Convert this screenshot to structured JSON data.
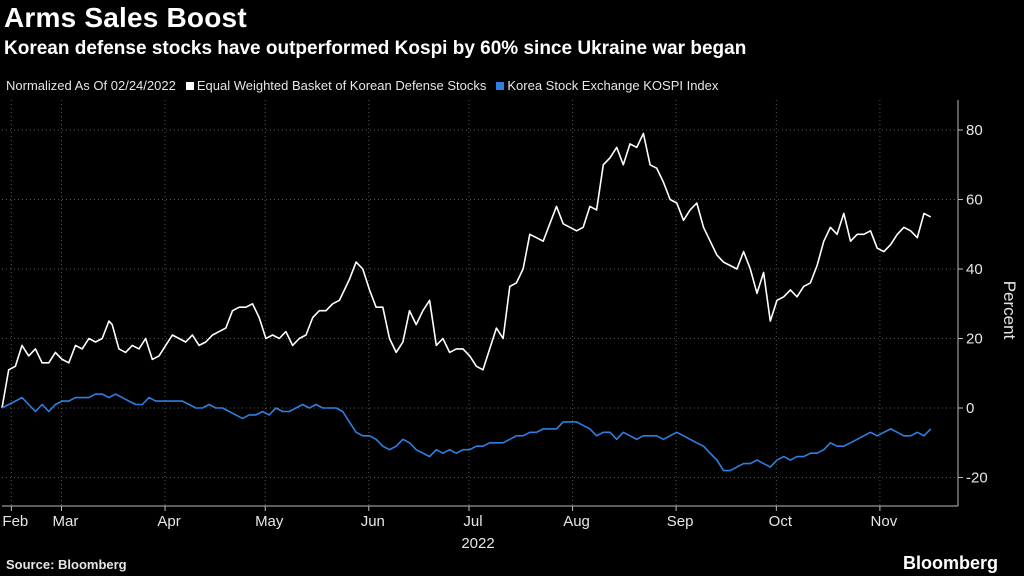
{
  "title": "Arms Sales Boost",
  "subtitle": "Korean defense stocks have outperformed Kospi by 60% since Ukraine war began",
  "legend": {
    "note": "Normalized As Of 02/24/2022",
    "items": [
      {
        "label": "Equal Weighted Basket of Korean Defense Stocks",
        "color": "#ffffff"
      },
      {
        "label": "Korea Stock Exchange KOSPI Index",
        "color": "#2f7fe0"
      }
    ]
  },
  "source": "Source: Bloomberg",
  "brand": "Bloomberg",
  "chart_data": {
    "type": "line",
    "title": "Arms Sales Boost",
    "ylabel": "Percent",
    "xlabel": "2022",
    "ylim": [
      -28,
      88
    ],
    "yticks": [
      -20,
      0,
      20,
      40,
      60,
      80
    ],
    "x_range": [
      0,
      279
    ],
    "xticks": [
      {
        "label": "Feb",
        "pos": 4
      },
      {
        "label": "Mar",
        "pos": 19
      },
      {
        "label": "Apr",
        "pos": 50
      },
      {
        "label": "May",
        "pos": 80
      },
      {
        "label": "Jun",
        "pos": 111
      },
      {
        "label": "Jul",
        "pos": 141
      },
      {
        "label": "Aug",
        "pos": 172
      },
      {
        "label": "Sep",
        "pos": 203
      },
      {
        "label": "Oct",
        "pos": 233
      },
      {
        "label": "Nov",
        "pos": 264
      }
    ],
    "year_label": "2022",
    "series": [
      {
        "name": "Equal Weighted Basket of Korean Defense Stocks",
        "color": "#ffffff",
        "points": [
          [
            0,
            0
          ],
          [
            2,
            11
          ],
          [
            4,
            12
          ],
          [
            6,
            18
          ],
          [
            8,
            15
          ],
          [
            10,
            17
          ],
          [
            12,
            13
          ],
          [
            14,
            13
          ],
          [
            16,
            16
          ],
          [
            18,
            14
          ],
          [
            20,
            13
          ],
          [
            22,
            18
          ],
          [
            24,
            17
          ],
          [
            26,
            20
          ],
          [
            28,
            19
          ],
          [
            30,
            20
          ],
          [
            32,
            25
          ],
          [
            33,
            24
          ],
          [
            35,
            17
          ],
          [
            37,
            16
          ],
          [
            39,
            18
          ],
          [
            41,
            17
          ],
          [
            43,
            20
          ],
          [
            45,
            14
          ],
          [
            47,
            15
          ],
          [
            49,
            18
          ],
          [
            51,
            21
          ],
          [
            53,
            20
          ],
          [
            55,
            19
          ],
          [
            57,
            21
          ],
          [
            59,
            18
          ],
          [
            61,
            19
          ],
          [
            63,
            21
          ],
          [
            65,
            22
          ],
          [
            67,
            23
          ],
          [
            69,
            28
          ],
          [
            71,
            29
          ],
          [
            73,
            29
          ],
          [
            75,
            30
          ],
          [
            77,
            26
          ],
          [
            79,
            20
          ],
          [
            81,
            21
          ],
          [
            83,
            20
          ],
          [
            85,
            22
          ],
          [
            87,
            18
          ],
          [
            89,
            20
          ],
          [
            91,
            21
          ],
          [
            93,
            26
          ],
          [
            95,
            28
          ],
          [
            97,
            28
          ],
          [
            99,
            30
          ],
          [
            101,
            31
          ],
          [
            103,
            35
          ],
          [
            104,
            37
          ],
          [
            106,
            42
          ],
          [
            108,
            40
          ],
          [
            110,
            34
          ],
          [
            112,
            29
          ],
          [
            114,
            29
          ],
          [
            116,
            20
          ],
          [
            118,
            16
          ],
          [
            120,
            19
          ],
          [
            122,
            28
          ],
          [
            124,
            24
          ],
          [
            126,
            28
          ],
          [
            128,
            31
          ],
          [
            130,
            18
          ],
          [
            132,
            20
          ],
          [
            134,
            16
          ],
          [
            136,
            17
          ],
          [
            138,
            17
          ],
          [
            140,
            15
          ],
          [
            142,
            12
          ],
          [
            144,
            11
          ],
          [
            146,
            17
          ],
          [
            148,
            23
          ],
          [
            150,
            20
          ],
          [
            152,
            35
          ],
          [
            154,
            36
          ],
          [
            156,
            40
          ],
          [
            158,
            50
          ],
          [
            160,
            49
          ],
          [
            162,
            48
          ],
          [
            164,
            53
          ],
          [
            166,
            58
          ],
          [
            168,
            53
          ],
          [
            170,
            52
          ],
          [
            172,
            51
          ],
          [
            174,
            52
          ],
          [
            176,
            58
          ],
          [
            178,
            57
          ],
          [
            180,
            70
          ],
          [
            182,
            72
          ],
          [
            184,
            75
          ],
          [
            186,
            70
          ],
          [
            188,
            76
          ],
          [
            190,
            75
          ],
          [
            192,
            79
          ],
          [
            194,
            70
          ],
          [
            196,
            69
          ],
          [
            198,
            65
          ],
          [
            200,
            60
          ],
          [
            202,
            59
          ],
          [
            204,
            54
          ],
          [
            206,
            57
          ],
          [
            208,
            59
          ],
          [
            210,
            52
          ],
          [
            212,
            48
          ],
          [
            214,
            44
          ],
          [
            216,
            42
          ],
          [
            218,
            41
          ],
          [
            220,
            40
          ],
          [
            222,
            45
          ],
          [
            224,
            40
          ],
          [
            226,
            33
          ],
          [
            228,
            39
          ],
          [
            230,
            25
          ],
          [
            232,
            31
          ],
          [
            234,
            32
          ],
          [
            236,
            34
          ],
          [
            238,
            32
          ],
          [
            240,
            35
          ],
          [
            242,
            36
          ],
          [
            244,
            41
          ],
          [
            246,
            48
          ],
          [
            248,
            52
          ],
          [
            250,
            50
          ],
          [
            252,
            56
          ],
          [
            254,
            48
          ],
          [
            256,
            50
          ],
          [
            258,
            50
          ],
          [
            260,
            51
          ],
          [
            262,
            46
          ],
          [
            264,
            45
          ],
          [
            266,
            47
          ],
          [
            268,
            50
          ],
          [
            270,
            52
          ],
          [
            272,
            51
          ],
          [
            274,
            49
          ],
          [
            276,
            56
          ],
          [
            278,
            55
          ]
        ]
      },
      {
        "name": "Korea Stock Exchange KOSPI Index",
        "color": "#2f7fe0",
        "points": [
          [
            0,
            0
          ],
          [
            2,
            1
          ],
          [
            4,
            2
          ],
          [
            6,
            3
          ],
          [
            8,
            1
          ],
          [
            10,
            -1
          ],
          [
            12,
            1
          ],
          [
            14,
            -1
          ],
          [
            16,
            1
          ],
          [
            18,
            2
          ],
          [
            20,
            2
          ],
          [
            22,
            3
          ],
          [
            24,
            3
          ],
          [
            26,
            3
          ],
          [
            28,
            4
          ],
          [
            30,
            4
          ],
          [
            32,
            3
          ],
          [
            34,
            4
          ],
          [
            36,
            3
          ],
          [
            38,
            2
          ],
          [
            40,
            1
          ],
          [
            42,
            1
          ],
          [
            44,
            3
          ],
          [
            46,
            2
          ],
          [
            48,
            2
          ],
          [
            50,
            2
          ],
          [
            52,
            2
          ],
          [
            54,
            2
          ],
          [
            56,
            1
          ],
          [
            58,
            0
          ],
          [
            60,
            0
          ],
          [
            62,
            1
          ],
          [
            64,
            0
          ],
          [
            66,
            0
          ],
          [
            68,
            -1
          ],
          [
            70,
            -2
          ],
          [
            72,
            -3
          ],
          [
            74,
            -2
          ],
          [
            76,
            -2
          ],
          [
            78,
            -1
          ],
          [
            80,
            -2
          ],
          [
            82,
            0
          ],
          [
            84,
            -1
          ],
          [
            86,
            -1
          ],
          [
            88,
            0
          ],
          [
            90,
            1
          ],
          [
            92,
            0
          ],
          [
            94,
            1
          ],
          [
            96,
            0
          ],
          [
            98,
            0
          ],
          [
            100,
            0
          ],
          [
            102,
            -1
          ],
          [
            104,
            -4
          ],
          [
            106,
            -7
          ],
          [
            108,
            -8
          ],
          [
            110,
            -8
          ],
          [
            112,
            -9
          ],
          [
            114,
            -11
          ],
          [
            116,
            -12
          ],
          [
            118,
            -11
          ],
          [
            120,
            -9
          ],
          [
            122,
            -10
          ],
          [
            124,
            -12
          ],
          [
            126,
            -13
          ],
          [
            128,
            -14
          ],
          [
            130,
            -12
          ],
          [
            132,
            -13
          ],
          [
            134,
            -12
          ],
          [
            136,
            -13
          ],
          [
            138,
            -12
          ],
          [
            140,
            -12
          ],
          [
            142,
            -11
          ],
          [
            144,
            -11
          ],
          [
            146,
            -10
          ],
          [
            148,
            -10
          ],
          [
            150,
            -10
          ],
          [
            152,
            -9
          ],
          [
            154,
            -8
          ],
          [
            156,
            -8
          ],
          [
            158,
            -7
          ],
          [
            160,
            -7
          ],
          [
            162,
            -6
          ],
          [
            164,
            -6
          ],
          [
            166,
            -6
          ],
          [
            168,
            -4
          ],
          [
            170,
            -4
          ],
          [
            172,
            -4
          ],
          [
            174,
            -5
          ],
          [
            176,
            -6
          ],
          [
            178,
            -8
          ],
          [
            180,
            -7
          ],
          [
            182,
            -7
          ],
          [
            184,
            -9
          ],
          [
            186,
            -7
          ],
          [
            188,
            -8
          ],
          [
            190,
            -9
          ],
          [
            192,
            -8
          ],
          [
            194,
            -8
          ],
          [
            196,
            -8
          ],
          [
            198,
            -9
          ],
          [
            200,
            -8
          ],
          [
            202,
            -7
          ],
          [
            204,
            -8
          ],
          [
            206,
            -9
          ],
          [
            208,
            -10
          ],
          [
            210,
            -11
          ],
          [
            212,
            -13
          ],
          [
            214,
            -15
          ],
          [
            216,
            -18
          ],
          [
            218,
            -18
          ],
          [
            220,
            -17
          ],
          [
            222,
            -16
          ],
          [
            224,
            -16
          ],
          [
            226,
            -15
          ],
          [
            228,
            -16
          ],
          [
            230,
            -17
          ],
          [
            232,
            -15
          ],
          [
            234,
            -14
          ],
          [
            236,
            -15
          ],
          [
            238,
            -14
          ],
          [
            240,
            -14
          ],
          [
            242,
            -13
          ],
          [
            244,
            -13
          ],
          [
            246,
            -12
          ],
          [
            248,
            -10
          ],
          [
            250,
            -11
          ],
          [
            252,
            -11
          ],
          [
            254,
            -10
          ],
          [
            256,
            -9
          ],
          [
            258,
            -8
          ],
          [
            260,
            -7
          ],
          [
            262,
            -8
          ],
          [
            264,
            -7
          ],
          [
            266,
            -6
          ],
          [
            268,
            -7
          ],
          [
            270,
            -8
          ],
          [
            272,
            -8
          ],
          [
            274,
            -7
          ],
          [
            276,
            -8
          ],
          [
            278,
            -6
          ]
        ]
      }
    ]
  }
}
